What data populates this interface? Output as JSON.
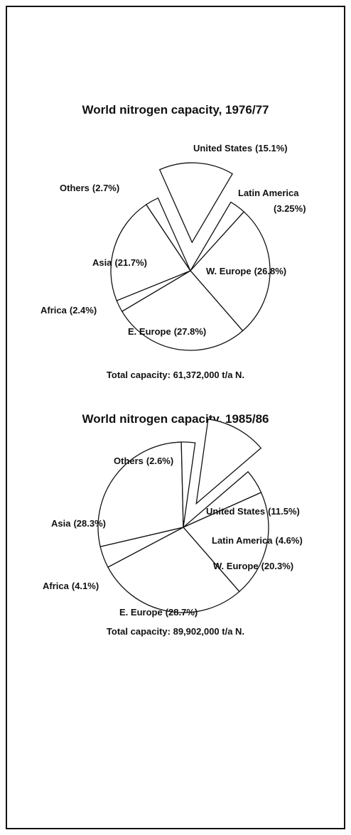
{
  "chart_data": [
    {
      "type": "pie",
      "title": "World nitrogen capacity, 1976/77",
      "categories": [
        "United States",
        "Latin America",
        "W. Europe",
        "E. Europe",
        "Africa",
        "Asia",
        "Others"
      ],
      "values": [
        15.1,
        3.25,
        26.8,
        27.8,
        2.4,
        21.7,
        2.7
      ],
      "value_labels": [
        "(15.1%)",
        "(3.25%)",
        "(26.8%)",
        "(27.8%)",
        "(2.4%)",
        "(21.7%)",
        "(2.7%)"
      ],
      "caption": "Total capacity: 61,372,000 t/a N."
    },
    {
      "type": "pie",
      "title": "World nitrogen capacity, 1985/86",
      "categories": [
        "United States",
        "Latin America",
        "W. Europe",
        "E. Europe",
        "Africa",
        "Asia",
        "Others"
      ],
      "values": [
        11.5,
        4.6,
        20.3,
        28.7,
        4.1,
        28.3,
        2.6
      ],
      "value_labels": [
        "(11.5%)",
        "(4.6%)",
        "(20.3%)",
        "(28.7%)",
        "(4.1%)",
        "(28.3%)",
        "(2.6%)"
      ],
      "caption": "Total capacity: 89,902,000 t/a N."
    }
  ]
}
